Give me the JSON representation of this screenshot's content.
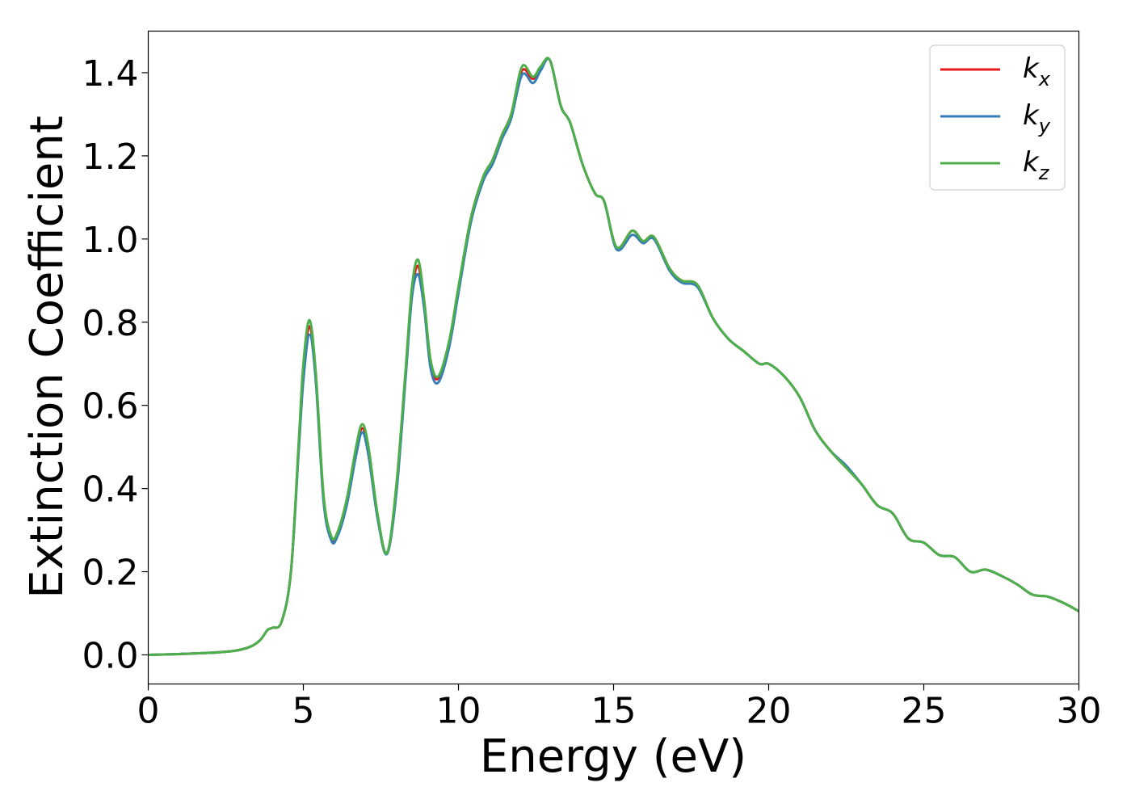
{
  "chart_data": {
    "type": "line",
    "title": "",
    "xlabel": "Energy (eV)",
    "ylabel": "Extinction Coefficient",
    "xlim": [
      0,
      30
    ],
    "ylim": [
      -0.07,
      1.5
    ],
    "x_ticks": [
      "0",
      "5",
      "10",
      "15",
      "20",
      "25",
      "30"
    ],
    "y_ticks": [
      "0.0",
      "0.2",
      "0.4",
      "0.6",
      "0.8",
      "1.0",
      "1.2",
      "1.4"
    ],
    "grid": false,
    "legend_position": "top-right",
    "series": [
      {
        "name": "k_x",
        "label_main": "k",
        "label_sub": "x",
        "color": "#e41a1c",
        "x": [
          0,
          1,
          2,
          2.8,
          3.3,
          3.6,
          3.85,
          4.0,
          4.3,
          4.6,
          4.85,
          5.0,
          5.2,
          5.4,
          5.65,
          5.9,
          6.1,
          6.4,
          6.7,
          6.9,
          7.1,
          7.4,
          7.7,
          8.0,
          8.3,
          8.5,
          8.7,
          8.9,
          9.1,
          9.35,
          9.7,
          10.0,
          10.4,
          10.8,
          11.1,
          11.4,
          11.7,
          12.05,
          12.4,
          12.65,
          12.95,
          13.3,
          13.6,
          14.0,
          14.4,
          14.7,
          15.1,
          15.6,
          15.95,
          16.3,
          16.8,
          17.2,
          17.7,
          18.2,
          18.7,
          19.2,
          19.7,
          20.0,
          20.5,
          21.0,
          21.5,
          22.0,
          22.5,
          23.0,
          23.5,
          24.0,
          24.5,
          25.0,
          25.5,
          26.0,
          26.5,
          27.0,
          27.5,
          28.0,
          28.5,
          29.0,
          29.5,
          30.0
        ],
        "values": [
          0.0,
          0.002,
          0.005,
          0.01,
          0.02,
          0.035,
          0.06,
          0.065,
          0.08,
          0.2,
          0.5,
          0.68,
          0.79,
          0.67,
          0.38,
          0.28,
          0.29,
          0.37,
          0.49,
          0.545,
          0.49,
          0.33,
          0.245,
          0.4,
          0.68,
          0.87,
          0.935,
          0.84,
          0.7,
          0.665,
          0.75,
          0.88,
          1.05,
          1.15,
          1.19,
          1.25,
          1.3,
          1.405,
          1.385,
          1.41,
          1.43,
          1.32,
          1.28,
          1.18,
          1.11,
          1.09,
          0.98,
          1.02,
          0.995,
          1.005,
          0.93,
          0.9,
          0.89,
          0.81,
          0.76,
          0.73,
          0.7,
          0.7,
          0.67,
          0.62,
          0.54,
          0.49,
          0.45,
          0.41,
          0.36,
          0.34,
          0.28,
          0.27,
          0.24,
          0.235,
          0.2,
          0.205,
          0.19,
          0.17,
          0.145,
          0.14,
          0.125,
          0.105
        ]
      },
      {
        "name": "k_y",
        "label_main": "k",
        "label_sub": "y",
        "color": "#377eb8",
        "x": [
          0,
          1,
          2,
          2.8,
          3.3,
          3.6,
          3.85,
          4.0,
          4.3,
          4.6,
          4.85,
          5.0,
          5.2,
          5.4,
          5.65,
          5.9,
          6.1,
          6.4,
          6.7,
          6.9,
          7.1,
          7.4,
          7.7,
          8.0,
          8.3,
          8.5,
          8.7,
          8.9,
          9.1,
          9.35,
          9.7,
          10.0,
          10.4,
          10.8,
          11.1,
          11.4,
          11.7,
          12.05,
          12.4,
          12.65,
          12.95,
          13.3,
          13.6,
          14.0,
          14.4,
          14.7,
          15.1,
          15.6,
          15.95,
          16.3,
          16.8,
          17.2,
          17.7,
          18.2,
          18.7,
          19.2,
          19.7,
          20.0,
          20.5,
          21.0,
          21.5,
          22.0,
          22.5,
          23.0,
          23.5,
          24.0,
          24.5,
          25.0,
          25.5,
          26.0,
          26.5,
          27.0,
          27.5,
          28.0,
          28.5,
          29.0,
          29.5,
          30.0
        ],
        "values": [
          0.0,
          0.002,
          0.005,
          0.01,
          0.02,
          0.035,
          0.06,
          0.065,
          0.08,
          0.2,
          0.49,
          0.66,
          0.77,
          0.66,
          0.37,
          0.275,
          0.285,
          0.36,
          0.48,
          0.535,
          0.48,
          0.325,
          0.243,
          0.39,
          0.67,
          0.86,
          0.915,
          0.83,
          0.69,
          0.655,
          0.74,
          0.87,
          1.04,
          1.14,
          1.18,
          1.24,
          1.29,
          1.395,
          1.375,
          1.405,
          1.43,
          1.32,
          1.28,
          1.18,
          1.11,
          1.09,
          0.975,
          1.01,
          0.99,
          1.0,
          0.925,
          0.895,
          0.885,
          0.81,
          0.76,
          0.73,
          0.7,
          0.7,
          0.67,
          0.62,
          0.54,
          0.49,
          0.455,
          0.41,
          0.36,
          0.34,
          0.28,
          0.27,
          0.24,
          0.235,
          0.2,
          0.205,
          0.19,
          0.17,
          0.145,
          0.14,
          0.125,
          0.105
        ]
      },
      {
        "name": "k_z",
        "label_main": "k",
        "label_sub": "z",
        "color": "#4daf4a",
        "x": [
          0,
          1,
          2,
          2.8,
          3.3,
          3.6,
          3.85,
          4.0,
          4.3,
          4.6,
          4.85,
          5.0,
          5.2,
          5.4,
          5.65,
          5.9,
          6.1,
          6.4,
          6.7,
          6.9,
          7.1,
          7.4,
          7.7,
          8.0,
          8.3,
          8.5,
          8.7,
          8.9,
          9.1,
          9.35,
          9.7,
          10.0,
          10.4,
          10.8,
          11.1,
          11.4,
          11.7,
          12.05,
          12.4,
          12.65,
          12.95,
          13.3,
          13.6,
          14.0,
          14.4,
          14.7,
          15.1,
          15.6,
          15.95,
          16.3,
          16.8,
          17.2,
          17.7,
          18.2,
          18.7,
          19.2,
          19.7,
          20.0,
          20.5,
          21.0,
          21.5,
          22.0,
          22.5,
          23.0,
          23.5,
          24.0,
          24.5,
          25.0,
          25.5,
          26.0,
          26.5,
          27.0,
          27.5,
          28.0,
          28.5,
          29.0,
          29.5,
          30.0
        ],
        "values": [
          0.0,
          0.002,
          0.005,
          0.01,
          0.02,
          0.035,
          0.06,
          0.065,
          0.08,
          0.2,
          0.51,
          0.7,
          0.805,
          0.68,
          0.385,
          0.285,
          0.295,
          0.375,
          0.5,
          0.555,
          0.5,
          0.335,
          0.245,
          0.41,
          0.69,
          0.885,
          0.95,
          0.85,
          0.71,
          0.67,
          0.755,
          0.885,
          1.05,
          1.15,
          1.19,
          1.25,
          1.3,
          1.415,
          1.39,
          1.415,
          1.43,
          1.32,
          1.28,
          1.18,
          1.11,
          1.09,
          0.98,
          1.02,
          0.995,
          1.005,
          0.93,
          0.9,
          0.89,
          0.81,
          0.76,
          0.73,
          0.7,
          0.7,
          0.67,
          0.62,
          0.54,
          0.49,
          0.45,
          0.41,
          0.36,
          0.34,
          0.28,
          0.27,
          0.24,
          0.235,
          0.2,
          0.205,
          0.19,
          0.17,
          0.145,
          0.14,
          0.125,
          0.105
        ]
      }
    ]
  }
}
